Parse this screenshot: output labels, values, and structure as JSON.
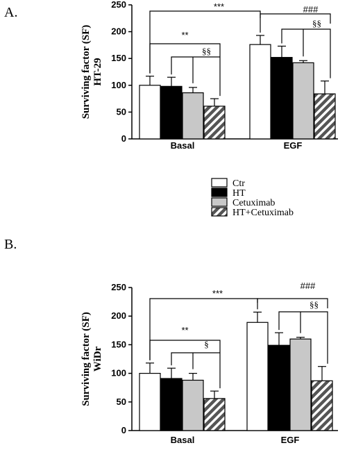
{
  "panels": [
    "A.",
    "B."
  ],
  "legend": [
    {
      "name": "Ctr",
      "fill": "#ffffff"
    },
    {
      "name": "HT",
      "fill": "#000000"
    },
    {
      "name": "Cetuximab",
      "fill": "#c8c8c8"
    },
    {
      "name": "HT+Cetuximab",
      "fill": "hatch"
    }
  ],
  "chart_data": [
    {
      "type": "bar",
      "ylabel": "Surviving factor (SF)\nHT-29",
      "ylim": [
        0,
        250
      ],
      "yticks": [
        0,
        50,
        100,
        150,
        200,
        250
      ],
      "categories": [
        "Basal",
        "EGF"
      ],
      "series": [
        {
          "name": "Ctr",
          "values": [
            100,
            176
          ],
          "errors": [
            17,
            17
          ]
        },
        {
          "name": "HT",
          "values": [
            98,
            152
          ],
          "errors": [
            17,
            21
          ]
        },
        {
          "name": "Cetuximab",
          "values": [
            86,
            142
          ],
          "errors": [
            10,
            4
          ]
        },
        {
          "name": "HT+Cetuximab",
          "values": [
            61,
            84
          ],
          "errors": [
            14,
            24
          ]
        }
      ],
      "annotations": [
        {
          "text": "***",
          "between": [
            "Basal",
            "EGF"
          ]
        },
        {
          "text": "###",
          "group": "EGF"
        },
        {
          "text": "§§",
          "group": "EGF"
        },
        {
          "text": "**",
          "group": "Basal"
        },
        {
          "text": "§§",
          "group": "Basal"
        }
      ]
    },
    {
      "type": "bar",
      "ylabel": "Surviving factor (SF)\nWiDr",
      "ylim": [
        0,
        250
      ],
      "yticks": [
        0,
        50,
        100,
        150,
        200,
        250
      ],
      "categories": [
        "Basal",
        "EGF"
      ],
      "series": [
        {
          "name": "Ctr",
          "values": [
            100,
            189
          ],
          "errors": [
            18,
            18
          ]
        },
        {
          "name": "HT",
          "values": [
            91,
            149
          ],
          "errors": [
            18,
            22
          ]
        },
        {
          "name": "Cetuximab",
          "values": [
            88,
            160
          ],
          "errors": [
            12,
            3
          ]
        },
        {
          "name": "HT+Cetuximab",
          "values": [
            56,
            87
          ],
          "errors": [
            13,
            25
          ]
        }
      ],
      "annotations": [
        {
          "text": "***",
          "between": [
            "Basal",
            "EGF"
          ]
        },
        {
          "text": "###",
          "group": "EGF"
        },
        {
          "text": "§§",
          "group": "EGF"
        },
        {
          "text": "**",
          "group": "Basal"
        },
        {
          "text": "§",
          "group": "Basal"
        }
      ]
    }
  ]
}
